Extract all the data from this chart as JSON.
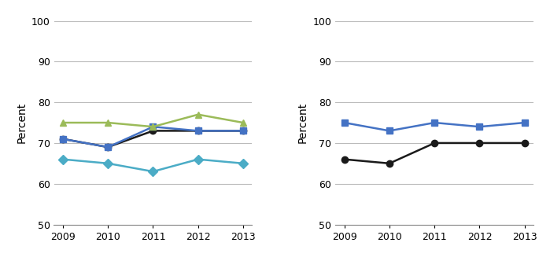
{
  "years": [
    2009,
    2010,
    2011,
    2012,
    2013
  ],
  "left_chart": {
    "Total": [
      71,
      69,
      73,
      73,
      73
    ],
    "White": [
      71,
      69,
      74,
      73,
      73
    ],
    "Black": [
      75,
      75,
      74,
      77,
      75
    ],
    "Hispanic": [
      66,
      65,
      63,
      66,
      65
    ]
  },
  "right_chart": {
    "Male": [
      66,
      65,
      70,
      70,
      70
    ],
    "Female": [
      75,
      73,
      75,
      74,
      75
    ]
  },
  "colors": {
    "Total": "#1a1a1a",
    "White": "#4472c4",
    "Black": "#9bbb59",
    "Hispanic": "#4bacc6",
    "Male": "#1a1a1a",
    "Female": "#4472c4"
  },
  "markers": {
    "Total": "o",
    "White": "s",
    "Black": "^",
    "Hispanic": "D",
    "Male": "o",
    "Female": "s"
  },
  "ylabel": "Percent",
  "ylim": [
    50,
    100
  ],
  "yticks": [
    50,
    60,
    70,
    80,
    90,
    100
  ],
  "tick_fontsize": 9,
  "legend_fontsize": 9,
  "linewidth": 1.8,
  "markersize": 6,
  "background_color": "#ffffff",
  "grid_color": "#bbbbbb"
}
